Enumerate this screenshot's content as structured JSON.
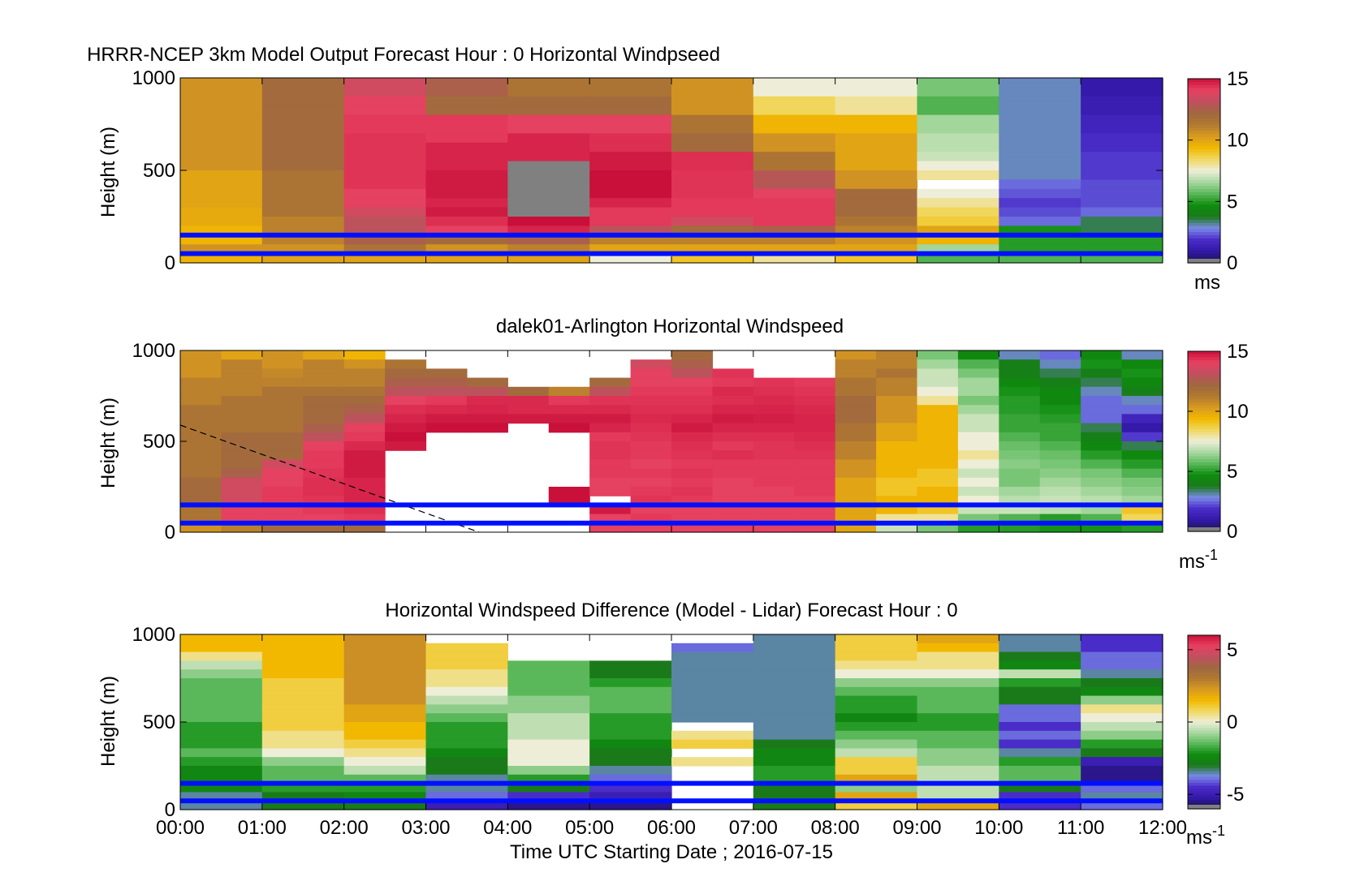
{
  "figure": {
    "xlabel": "Time UTC  Starting Date ; 2016-07-15",
    "xticks": [
      "00:00",
      "01:00",
      "02:00",
      "03:00",
      "04:00",
      "05:00",
      "06:00",
      "07:00",
      "08:00",
      "09:00",
      "10:00",
      "11:00",
      "12:00"
    ]
  },
  "colormap": [
    "#1a1450",
    "#3318a8",
    "#4a2cc8",
    "#7a8ae8",
    "#1a7a1a",
    "#0e8c0e",
    "#5ab85a",
    "#a8d8a0",
    "#eeeed8",
    "#f0d860",
    "#f2b800",
    "#d89a20",
    "#b07830",
    "#a06840",
    "#c05060",
    "#e84060",
    "#c8103a",
    "#808080"
  ],
  "chart_data": [
    {
      "type": "heatmap",
      "title": "HRRR-NCEP 3km Model Output   Forecast Hour : 0 Horizontal Windpseed",
      "ylabel": "Height (m)",
      "yticks": [
        "0",
        "500",
        "1000"
      ],
      "ylim": [
        0,
        1000
      ],
      "xlim": [
        0,
        12
      ],
      "colorbar": {
        "ticks": [
          "0",
          "5",
          "10",
          "15"
        ],
        "range": [
          0,
          15
        ],
        "unit": "ms"
      },
      "reference_heights": [
        150,
        50
      ],
      "x": [
        0,
        1,
        2,
        3,
        4,
        5,
        6,
        7,
        8,
        9,
        10,
        11
      ],
      "heights": [
        975,
        925,
        875,
        825,
        775,
        725,
        675,
        625,
        575,
        525,
        475,
        425,
        375,
        325,
        275,
        225,
        175,
        125,
        75,
        25
      ],
      "values": [
        [
          10.5,
          10.5,
          10.5,
          10.5,
          10.5,
          10.5,
          10.5,
          10.5,
          10.5,
          10.5,
          10.0,
          10.0,
          10.0,
          10.0,
          9.8,
          9.8,
          9.5,
          9.5,
          10.5,
          9.5
        ],
        [
          12.0,
          12.0,
          12.0,
          12.0,
          12.0,
          12.0,
          12.0,
          12.0,
          12.0,
          12.0,
          11.5,
          11.5,
          11.5,
          11.5,
          11.5,
          11.0,
          11.0,
          11.0,
          10.5,
          10.0
        ],
        [
          13.5,
          13.5,
          14.0,
          14.0,
          14.2,
          14.2,
          14.3,
          14.3,
          14.3,
          14.3,
          14.3,
          14.3,
          14.0,
          14.0,
          13.5,
          13.0,
          13.0,
          12.5,
          11.5,
          10.0
        ],
        [
          12.5,
          12.5,
          12.0,
          12.0,
          14.2,
          14.2,
          14.2,
          14.6,
          14.6,
          14.6,
          14.8,
          14.8,
          14.8,
          14.6,
          14.8,
          14.4,
          14.0,
          12.0,
          10.5,
          10.0
        ],
        [
          11.5,
          11.5,
          12.0,
          12.0,
          14.0,
          14.0,
          14.6,
          14.6,
          14.6,
          null,
          null,
          null,
          null,
          null,
          null,
          15.0,
          14.6,
          12.5,
          11.0,
          10.0
        ],
        [
          11.5,
          11.5,
          12.0,
          12.0,
          14.0,
          14.0,
          14.4,
          14.4,
          14.8,
          14.8,
          15.0,
          15.0,
          15.0,
          14.6,
          14.2,
          14.2,
          13.0,
          11.0,
          10.0,
          7.5
        ],
        [
          10.5,
          10.5,
          10.5,
          10.5,
          11.5,
          11.5,
          12.0,
          12.0,
          14.4,
          14.4,
          14.3,
          14.3,
          14.3,
          14.2,
          14.2,
          13.5,
          12.0,
          11.0,
          10.0,
          9.0
        ],
        [
          7.5,
          7.5,
          8.5,
          8.5,
          9.5,
          9.5,
          10.5,
          10.5,
          11.5,
          11.5,
          12.8,
          12.8,
          14.0,
          14.2,
          14.2,
          14.2,
          12.5,
          11.0,
          10.0,
          8.0
        ],
        [
          7.5,
          7.5,
          8.0,
          8.0,
          9.5,
          9.5,
          10.0,
          10.0,
          10.0,
          10.0,
          10.5,
          10.5,
          12.0,
          12.0,
          12.0,
          11.5,
          11.0,
          10.5,
          10.0,
          9.0
        ],
        [
          6.0,
          6.0,
          5.5,
          5.5,
          6.5,
          6.5,
          6.8,
          6.8,
          7.0,
          7.5,
          8.0,
          null,
          7.5,
          8.0,
          8.5,
          8.8,
          10.0,
          9.5,
          6.5,
          5.5
        ],
        [
          3.0,
          3.0,
          3.0,
          3.0,
          3.0,
          3.0,
          3.0,
          3.0,
          3.0,
          3.0,
          3.0,
          2.5,
          2.3,
          2.0,
          2.2,
          2.5,
          4.8,
          5.0,
          5.0,
          5.5
        ],
        [
          1.0,
          1.0,
          1.2,
          1.2,
          1.5,
          1.5,
          1.8,
          1.8,
          2.0,
          2.0,
          2.0,
          2.2,
          2.2,
          2.2,
          2.5,
          3.5,
          3.5,
          5.0,
          5.0,
          5.5
        ]
      ]
    },
    {
      "type": "heatmap",
      "title": "dalek01-Arlington  Horizontal Windspeed",
      "ylabel": "Height (m)",
      "yticks": [
        "0",
        "500",
        "1000"
      ],
      "ylim": [
        0,
        1000
      ],
      "xlim": [
        0,
        12
      ],
      "colorbar": {
        "ticks": [
          "0",
          "5",
          "10",
          "15"
        ],
        "range": [
          0,
          15
        ],
        "unit": "ms-1"
      },
      "reference_heights": [
        150,
        50
      ],
      "x": [
        0,
        0.5,
        1,
        1.5,
        2,
        2.5,
        3,
        3.5,
        4,
        4.5,
        5,
        5.5,
        6,
        6.5,
        7,
        7.5,
        8,
        8.5,
        9,
        9.5,
        10,
        10.5,
        11,
        11.5
      ],
      "heights": [
        975,
        925,
        875,
        825,
        775,
        725,
        675,
        625,
        575,
        525,
        475,
        425,
        375,
        325,
        275,
        225,
        175,
        125,
        75,
        25
      ],
      "values": [
        [
          10.5,
          10.5,
          10.5,
          11.0,
          11.0,
          11.0,
          11.5,
          11.5,
          11.5,
          11.5,
          11.5,
          11.5,
          11.5,
          11.5,
          12.0,
          12.0,
          12.0,
          11.5,
          11.5,
          10.5
        ],
        [
          10.0,
          11.0,
          11.0,
          11.0,
          11.0,
          11.5,
          11.5,
          11.5,
          11.5,
          12.0,
          12.0,
          12.0,
          12.0,
          12.5,
          13.5,
          13.5,
          13.5,
          14.0,
          14.0,
          11.0
        ],
        [
          10.5,
          10.5,
          10.8,
          11.0,
          11.5,
          11.5,
          11.5,
          11.5,
          11.5,
          12.0,
          12.0,
          12.0,
          13.5,
          14.0,
          14.0,
          14.2,
          14.2,
          14.0,
          14.0,
          12.0
        ],
        [
          10.0,
          11.0,
          11.0,
          11.0,
          11.5,
          12.0,
          12.0,
          12.0,
          12.5,
          13.0,
          14.0,
          14.2,
          14.2,
          14.3,
          14.4,
          14.4,
          14.3,
          14.2,
          14.0,
          12.0
        ],
        [
          9.5,
          10.5,
          11.0,
          11.0,
          11.5,
          12.0,
          12.5,
          13.0,
          14.0,
          14.2,
          14.5,
          14.8,
          14.8,
          14.8,
          14.6,
          14.6,
          14.6,
          14.4,
          14.2,
          12.0
        ],
        [
          null,
          11.5,
          12.0,
          12.5,
          13.0,
          14.0,
          14.4,
          14.6,
          14.8,
          15.0,
          14.8,
          null,
          null,
          null,
          null,
          null,
          null,
          null,
          null,
          null
        ],
        [
          null,
          null,
          12.0,
          12.5,
          13.0,
          14.2,
          14.5,
          14.8,
          15.0,
          null,
          null,
          null,
          null,
          null,
          null,
          null,
          null,
          null,
          null,
          null
        ],
        [
          null,
          null,
          null,
          12.0,
          13.0,
          14.5,
          14.6,
          14.8,
          15.0,
          null,
          null,
          null,
          null,
          null,
          null,
          null,
          null,
          null,
          null,
          null
        ],
        [
          null,
          null,
          null,
          null,
          12.0,
          14.5,
          14.5,
          14.8,
          null,
          null,
          null,
          null,
          null,
          null,
          null,
          null,
          null,
          null,
          null,
          null
        ],
        [
          null,
          null,
          null,
          null,
          11.0,
          14.2,
          14.5,
          14.8,
          15.0,
          null,
          null,
          null,
          null,
          null,
          null,
          15.0,
          15.0,
          null,
          null,
          null
        ],
        [
          null,
          null,
          null,
          12.0,
          13.0,
          14.3,
          14.5,
          14.8,
          14.6,
          14.2,
          14.3,
          14.3,
          14.2,
          14.2,
          14.0,
          14.0,
          null,
          14.8,
          14.0,
          14.0
        ],
        [
          null,
          13.5,
          14.0,
          14.0,
          14.2,
          14.3,
          14.4,
          14.5,
          14.4,
          14.3,
          14.2,
          14.2,
          14.0,
          14.2,
          14.0,
          14.2,
          14.3,
          14.0,
          14.2,
          14.0
        ],
        [
          12.0,
          12.5,
          13.0,
          14.0,
          14.2,
          14.3,
          14.4,
          14.6,
          14.8,
          14.5,
          14.4,
          14.3,
          14.2,
          14.3,
          14.2,
          14.3,
          14.2,
          14.0,
          14.0,
          14.0
        ],
        [
          null,
          null,
          14.3,
          14.2,
          14.5,
          14.4,
          14.6,
          14.8,
          14.6,
          14.4,
          14.2,
          14.4,
          14.2,
          14.2,
          14.0,
          14.0,
          14.0,
          14.0,
          14.0,
          14.0
        ],
        [
          null,
          null,
          null,
          14.3,
          14.4,
          14.5,
          14.6,
          14.7,
          14.6,
          14.4,
          14.3,
          14.3,
          14.2,
          14.2,
          14.2,
          14.0,
          14.0,
          14.0,
          14.0,
          14.0
        ],
        [
          null,
          null,
          null,
          14.2,
          14.3,
          14.4,
          14.5,
          14.6,
          14.6,
          14.5,
          14.4,
          14.3,
          14.2,
          14.2,
          14.2,
          14.2,
          14.0,
          14.0,
          14.0,
          14.0
        ],
        [
          10.5,
          11.0,
          11.0,
          11.5,
          11.5,
          12.0,
          12.0,
          12.0,
          11.5,
          11.5,
          11.0,
          11.0,
          10.5,
          10.5,
          10.0,
          10.0,
          10.0,
          10.0,
          10.0,
          10.0
        ],
        [
          11.0,
          11.0,
          11.5,
          11.0,
          11.0,
          10.5,
          10.5,
          10.5,
          10.0,
          10.0,
          9.5,
          9.5,
          9.5,
          9.5,
          9.0,
          9.0,
          9.5,
          9.5,
          8.0,
          7.0
        ],
        [
          6.0,
          6.5,
          7.0,
          7.0,
          7.5,
          8.0,
          9.5,
          9.5,
          9.5,
          9.5,
          9.5,
          9.5,
          9.5,
          9.0,
          9.0,
          9.5,
          9.5,
          9.0,
          8.0,
          6.0
        ],
        [
          4.5,
          5.5,
          6.0,
          6.5,
          6.5,
          6.0,
          6.5,
          7.0,
          7.0,
          7.5,
          7.5,
          8.0,
          7.5,
          7.0,
          7.5,
          7.0,
          7.5,
          7.0,
          6.0,
          5.0
        ],
        [
          3.0,
          4.0,
          4.0,
          4.5,
          4.8,
          5.0,
          5.0,
          5.2,
          5.2,
          5.5,
          5.8,
          6.0,
          6.2,
          6.0,
          6.0,
          6.5,
          6.8,
          7.0,
          5.5,
          5.0
        ],
        [
          2.5,
          3.0,
          3.5,
          4.0,
          4.5,
          4.5,
          4.8,
          5.0,
          5.2,
          5.2,
          5.5,
          5.8,
          6.0,
          6.2,
          6.5,
          6.8,
          7.0,
          6.8,
          5.0,
          4.8
        ],
        [
          4.5,
          4.8,
          4.0,
          3.5,
          3.0,
          2.5,
          2.5,
          2.5,
          3.5,
          4.0,
          4.5,
          5.0,
          5.5,
          6.0,
          6.2,
          6.5,
          6.8,
          6.5,
          5.5,
          4.8
        ],
        [
          3.0,
          4.5,
          4.8,
          4.5,
          4.0,
          3.0,
          2.5,
          1.5,
          1.0,
          2.0,
          3.5,
          4.5,
          5.0,
          5.5,
          6.0,
          6.2,
          6.5,
          9.0,
          8.5,
          5.0
        ]
      ]
    },
    {
      "type": "heatmap",
      "title": "Horizontal Windspeed Difference (Model - Lidar) Forecast Hour : 0",
      "ylabel": "Height (m)",
      "yticks": [
        "0",
        "500",
        "1000"
      ],
      "ylim": [
        0,
        1000
      ],
      "xlim": [
        0,
        12
      ],
      "colorbar": {
        "ticks": [
          "-5",
          "0",
          "5"
        ],
        "range": [
          -6,
          6
        ],
        "unit": "ms-1"
      },
      "reference_heights": [
        150,
        50
      ],
      "x": [
        0,
        1,
        2,
        3,
        4,
        5,
        6,
        7,
        8,
        9,
        10,
        11
      ],
      "heights": [
        975,
        925,
        875,
        825,
        775,
        725,
        675,
        625,
        575,
        525,
        475,
        425,
        375,
        325,
        275,
        225,
        175,
        125,
        75,
        25
      ],
      "values": [
        [
          1.5,
          1.5,
          0.5,
          -0.5,
          -1.0,
          -1.5,
          -1.5,
          -1.5,
          -1.5,
          -1.5,
          -2.0,
          -2.0,
          -2.0,
          -1.5,
          -2.0,
          -2.5,
          -2.5,
          -2.5,
          -3.5,
          -3.5
        ],
        [
          1.5,
          1.5,
          1.5,
          1.5,
          1.5,
          1.0,
          1.0,
          1.0,
          1.0,
          1.0,
          1.0,
          0.5,
          0.5,
          0.0,
          -1.0,
          -1.5,
          -1.5,
          -2.0,
          -3.0,
          -3.0
        ],
        [
          2.5,
          2.5,
          2.5,
          2.5,
          2.5,
          2.5,
          2.5,
          2.5,
          2.0,
          2.0,
          1.5,
          1.5,
          1.0,
          0.5,
          0.0,
          -0.5,
          -1.5,
          -2.0,
          -2.5,
          -3.0
        ],
        [
          null,
          1.0,
          1.0,
          1.0,
          0.5,
          0.5,
          0.0,
          -0.5,
          -1.0,
          -1.5,
          -2.0,
          -2.0,
          -2.0,
          -2.5,
          -3.0,
          -3.0,
          -3.5,
          -3.5,
          -4.0,
          -5.0
        ],
        [
          null,
          null,
          null,
          -1.5,
          -1.5,
          -1.5,
          -1.5,
          -1.0,
          -1.0,
          -0.5,
          -0.5,
          -0.5,
          0.0,
          0.0,
          0.0,
          -1.0,
          -2.0,
          -3.0,
          -4.5,
          -5.5
        ],
        [
          null,
          null,
          null,
          -3.0,
          -3.0,
          -2.0,
          -1.5,
          -1.5,
          -1.5,
          -2.0,
          -2.0,
          -2.0,
          -2.5,
          -3.0,
          -3.0,
          -3.5,
          -4.0,
          -4.5,
          -5.0,
          -5.5
        ],
        [
          null,
          -4.0,
          -3.5,
          -3.5,
          -3.5,
          -3.5,
          -3.5,
          -3.5,
          -3.5,
          -3.5,
          null,
          0.5,
          1.0,
          null,
          0.5,
          null,
          null,
          null,
          null,
          null
        ],
        [
          -3.5,
          -3.5,
          -3.5,
          -3.5,
          -3.5,
          -3.5,
          -3.5,
          -3.5,
          -3.5,
          -3.5,
          -3.5,
          -3.5,
          -3.0,
          -2.5,
          -2.5,
          -2.0,
          -2.0,
          -3.0,
          -3.0,
          -3.0
        ],
        [
          1.0,
          1.0,
          1.0,
          0.5,
          0.0,
          -1.0,
          -1.5,
          -2.0,
          -2.0,
          -2.5,
          -2.0,
          -1.5,
          -1.0,
          -0.5,
          1.0,
          1.0,
          2.0,
          -1.0,
          2.0,
          1.0
        ],
        [
          2.0,
          1.5,
          0.5,
          0.5,
          0.0,
          -1.0,
          -1.5,
          -1.5,
          -1.5,
          -2.0,
          -2.0,
          -1.5,
          -1.5,
          -1.0,
          -1.0,
          -0.5,
          -0.5,
          -0.5,
          -0.5,
          2.0
        ],
        [
          -3.5,
          -3.5,
          -3.0,
          -2.5,
          -0.5,
          -2.0,
          -3.0,
          -3.0,
          -4.0,
          -4.0,
          -4.5,
          -4.0,
          -4.5,
          -3.5,
          -2.0,
          -1.5,
          -1.5,
          -3.0,
          -4.5,
          -4.5
        ],
        [
          -4.5,
          -4.5,
          -4.0,
          -4.0,
          -3.5,
          -3.0,
          -2.5,
          -1.0,
          0.5,
          0.0,
          -0.5,
          -1.0,
          -2.0,
          -3.0,
          -5.0,
          -5.5,
          -5.5,
          -4.0,
          -3.5,
          -4.0
        ]
      ]
    }
  ]
}
